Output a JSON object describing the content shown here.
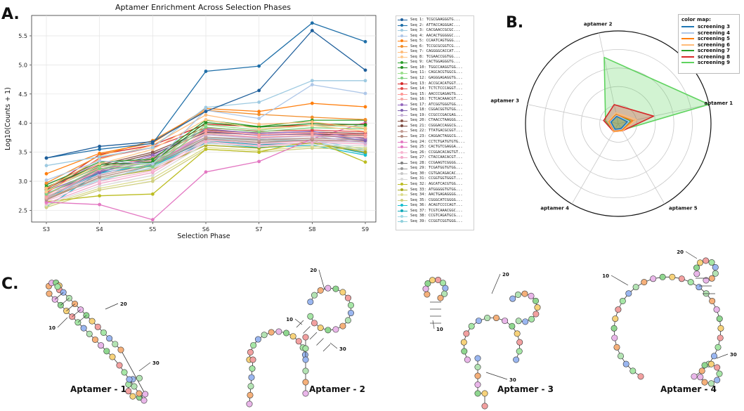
{
  "panels": {
    "a": "A.",
    "b": "B.",
    "c": "C."
  },
  "chart_data": [
    {
      "type": "line",
      "title": "Aptamer Enrichment Across Selection Phases",
      "xlabel": "Selection Phase",
      "ylabel": "Log10(Counts + 1)",
      "categories": [
        "S3",
        "S4",
        "S5",
        "S6",
        "S7",
        "S8",
        "S9"
      ],
      "ylim": [
        2.3,
        5.85
      ],
      "yticks": [
        "2.5",
        "3.0",
        "3.5",
        "4.0",
        "4.5",
        "5.0",
        "5.5"
      ],
      "grid": true,
      "legend_position": "outside-right",
      "series": [
        {
          "name": "Seq 1: TCGCGAAGGGTG...",
          "color": "#1f5f9b",
          "values": [
            3.4,
            3.6,
            3.68,
            4.2,
            4.56,
            5.59,
            4.91
          ]
        },
        {
          "name": "Seq 2: ATTACCAGGGAC...",
          "color": "#1f6fa8",
          "values": [
            3.4,
            3.55,
            3.65,
            4.89,
            4.98,
            5.72,
            5.4
          ]
        },
        {
          "name": "Seq 3: CACGAACCGCGC...",
          "color": "#9ecae1",
          "values": [
            3.27,
            3.42,
            3.58,
            4.27,
            4.36,
            4.73,
            4.73
          ]
        },
        {
          "name": "Seq 4: AACACTGGGGGC...",
          "color": "#aec7e8",
          "values": [
            3.02,
            3.35,
            3.3,
            4.22,
            4.08,
            4.66,
            4.51
          ]
        },
        {
          "name": "Seq 5: CCAATCAGTGGG...",
          "color": "#ff7f0e",
          "values": [
            3.13,
            3.48,
            3.66,
            4.25,
            4.2,
            4.34,
            4.28
          ]
        },
        {
          "name": "Seq 6: TCCGCGCGGTCG...",
          "color": "#f28e2b",
          "values": [
            2.97,
            3.44,
            3.7,
            4.22,
            4.15,
            4.1,
            4.06
          ]
        },
        {
          "name": "Seq 7: CAGGGGCACCAT...",
          "color": "#ffbb78",
          "values": [
            2.88,
            3.38,
            3.62,
            4.14,
            3.98,
            4.02,
            3.91
          ]
        },
        {
          "name": "Seq 8: TCGAACCGGTGG...",
          "color": "#ffc88a",
          "values": [
            2.82,
            3.3,
            3.55,
            4.06,
            3.9,
            3.96,
            3.86
          ]
        },
        {
          "name": "Seq 9: CACTGGAGGGTG...",
          "color": "#2ca02c",
          "values": [
            2.94,
            3.33,
            3.38,
            4.05,
            3.94,
            4.05,
            4.05
          ]
        },
        {
          "name": "Seq 10: TGGCCAAGGTGG...",
          "color": "#248f24",
          "values": [
            2.9,
            3.29,
            3.33,
            4.01,
            3.93,
            3.99,
            3.97
          ]
        },
        {
          "name": "Seq 11: CAGCACGTGGCG...",
          "color": "#98df8a",
          "values": [
            2.84,
            3.26,
            3.3,
            3.97,
            3.88,
            3.96,
            3.94
          ]
        },
        {
          "name": "Seq 12: GAGGGAGAGGTG...",
          "color": "#7fcf7f",
          "values": [
            2.78,
            3.22,
            3.25,
            3.93,
            3.85,
            3.92,
            3.9
          ]
        },
        {
          "name": "Seq 13: ACCGCACATGGT...",
          "color": "#d62728",
          "values": [
            2.86,
            3.46,
            3.62,
            3.98,
            3.94,
            3.96,
            3.98
          ]
        },
        {
          "name": "Seq 14: TCTCTCCCAGGT...",
          "color": "#e04848",
          "values": [
            2.8,
            3.4,
            3.58,
            3.92,
            3.86,
            3.88,
            3.85
          ]
        },
        {
          "name": "Seq 15: AACCCGAGAGTG...",
          "color": "#ff9896",
          "values": [
            2.76,
            3.24,
            3.4,
            3.87,
            3.8,
            3.83,
            3.8
          ]
        },
        {
          "name": "Seq 16: TCTCACAAACGT...",
          "color": "#f4a6a5",
          "values": [
            2.72,
            3.2,
            3.36,
            3.82,
            3.76,
            3.79,
            3.76
          ]
        },
        {
          "name": "Seq 17: ATCGGTGGGTGG...",
          "color": "#9467bd",
          "values": [
            2.83,
            3.18,
            3.45,
            3.9,
            3.82,
            3.86,
            3.73
          ]
        },
        {
          "name": "Seq 18: CGGACGGTGTGG...",
          "color": "#7f5fb0",
          "values": [
            2.79,
            3.15,
            3.42,
            3.86,
            3.79,
            3.82,
            3.7
          ]
        },
        {
          "name": "Seq 19: CCGCCCGACGAG...",
          "color": "#c5b0d5",
          "values": [
            2.74,
            3.12,
            3.35,
            3.8,
            3.74,
            3.78,
            3.66
          ]
        },
        {
          "name": "Seq 20: CTAACCTAAGGG...",
          "color": "#8c564b",
          "values": [
            2.88,
            3.28,
            3.5,
            3.88,
            3.83,
            3.85,
            3.82
          ]
        },
        {
          "name": "Seq 21: CGGGACCAGGCG...",
          "color": "#7a4a40",
          "values": [
            2.85,
            3.25,
            3.47,
            3.84,
            3.8,
            3.81,
            3.79
          ]
        },
        {
          "name": "Seq 22: TTATGACGCGGT...",
          "color": "#c49c94",
          "values": [
            2.7,
            3.1,
            3.3,
            3.76,
            3.7,
            3.74,
            3.72
          ]
        },
        {
          "name": "Seq 23: CAGGACTAGGCG...",
          "color": "#b08a80",
          "values": [
            2.68,
            3.07,
            3.27,
            3.73,
            3.67,
            3.71,
            3.69
          ]
        },
        {
          "name": "Seq 24: CCTCTGATGTGTG...",
          "color": "#e377c2",
          "values": [
            2.95,
            3.3,
            3.3,
            3.8,
            3.75,
            3.78,
            3.83
          ]
        },
        {
          "name": "Seq 25: CACTGTCGAGGA...",
          "color": "#e377c2",
          "values": [
            2.64,
            2.6,
            2.34,
            3.16,
            3.34,
            3.73,
            4.01
          ]
        },
        {
          "name": "Seq 26: CCGGACACAGTGT...",
          "color": "#f7b6d2",
          "values": [
            2.66,
            3.0,
            3.18,
            3.72,
            3.64,
            3.7,
            3.68
          ]
        },
        {
          "name": "Seq 27: CTACCAACACGT...",
          "color": "#f2a8c9",
          "values": [
            2.62,
            2.96,
            3.15,
            3.68,
            3.61,
            3.67,
            3.64
          ]
        },
        {
          "name": "Seq 28: CCGAAGTCGGGG...",
          "color": "#7f7f7f",
          "values": [
            2.77,
            3.21,
            3.38,
            3.8,
            3.76,
            3.78,
            3.75
          ]
        },
        {
          "name": "Seq 29: TCGATGGTGTGG...",
          "color": "#999999",
          "values": [
            2.73,
            3.17,
            3.33,
            3.76,
            3.72,
            3.74,
            3.71
          ]
        },
        {
          "name": "Seq 30: CGTGACAGACAC...",
          "color": "#c7c7c7",
          "values": [
            2.69,
            3.05,
            3.22,
            3.7,
            3.66,
            3.69,
            3.67
          ]
        },
        {
          "name": "Seq 31: CCGGTGGTGGGT...",
          "color": "#d9d9d9",
          "values": [
            2.6,
            2.92,
            3.1,
            3.65,
            3.6,
            3.63,
            3.61
          ]
        },
        {
          "name": "Seq 32: AGCATCACGTGG...",
          "color": "#bcbd22",
          "values": [
            2.65,
            2.75,
            2.78,
            3.55,
            3.5,
            3.71,
            3.33
          ]
        },
        {
          "name": "Seq 33: ATGGGGGTGTGG...",
          "color": "#a8a920",
          "values": [
            2.7,
            3.05,
            3.2,
            3.62,
            3.57,
            3.66,
            3.5
          ]
        },
        {
          "name": "Seq 34: AACTGAGAGGGG...",
          "color": "#dbdb8d",
          "values": [
            2.58,
            2.88,
            3.05,
            3.58,
            3.53,
            3.6,
            3.58
          ]
        },
        {
          "name": "Seq 35: CGGGCATCGGGG...",
          "color": "#cfcf80",
          "values": [
            2.55,
            2.85,
            3.0,
            3.55,
            3.5,
            3.57,
            3.55
          ]
        },
        {
          "name": "Seq 36: ACAGTCCCCAGT...",
          "color": "#17becf",
          "values": [
            2.56,
            3.15,
            3.27,
            3.66,
            3.58,
            3.62,
            3.45
          ]
        },
        {
          "name": "Seq 37: TCGTCAAACGGC...",
          "color": "#12a8b8",
          "values": [
            2.72,
            3.14,
            3.29,
            3.7,
            3.63,
            3.66,
            3.48
          ]
        },
        {
          "name": "Seq 38: CCGTCAGATGCG...",
          "color": "#9edae5",
          "values": [
            2.8,
            3.02,
            3.24,
            3.74,
            3.7,
            3.71,
            3.55
          ]
        },
        {
          "name": "Seq 39: CCGGTCGGTGGG...",
          "color": "#8fd0dc",
          "values": [
            2.75,
            3.0,
            3.28,
            3.76,
            3.71,
            3.68,
            3.52
          ]
        }
      ]
    },
    {
      "type": "radar",
      "axes": [
        "aptamer 1",
        "aptamer 2",
        "aptamer 3",
        "aptamer 4",
        "aptamer 5"
      ],
      "legend_title": "color map:",
      "legend_position": "top-right",
      "series": [
        {
          "name": "screening 3",
          "color": "#1f77b4",
          "values": [
            0.1,
            0.08,
            0.08,
            0.07,
            0.06
          ],
          "fill": false
        },
        {
          "name": "screening 4",
          "color": "#aec7e8",
          "values": [
            0.12,
            0.09,
            0.09,
            0.08,
            0.07
          ],
          "fill": false
        },
        {
          "name": "screening 5",
          "color": "#ff7f0e",
          "values": [
            0.16,
            0.1,
            0.1,
            0.09,
            0.08
          ],
          "fill": false
        },
        {
          "name": "screening 6",
          "color": "#ffbb78",
          "values": [
            0.2,
            0.12,
            0.11,
            0.1,
            0.09
          ],
          "fill": false
        },
        {
          "name": "screening 7",
          "color": "#2ca02c",
          "values": [
            0.13,
            0.1,
            0.11,
            0.08,
            0.07
          ],
          "fill": true
        },
        {
          "name": "screening 8",
          "color": "#d62728",
          "values": [
            0.39,
            0.21,
            0.16,
            0.1,
            0.09
          ],
          "fill": true
        },
        {
          "name": "screening 9",
          "color": "#5fd35f",
          "values": [
            1.0,
            0.73,
            0.14,
            0.09,
            0.08
          ],
          "fill": true
        }
      ]
    }
  ],
  "structures": [
    {
      "label": "Aptamer - 1",
      "ticks": [
        "10",
        "20",
        "30"
      ]
    },
    {
      "label": "Aptamer - 2",
      "ticks": [
        "10",
        "20",
        "30"
      ]
    },
    {
      "label": "Aptamer - 3",
      "ticks": [
        "10",
        "20",
        "30"
      ]
    },
    {
      "label": "Aptamer - 4",
      "ticks": [
        "10",
        "20",
        "30"
      ]
    }
  ]
}
